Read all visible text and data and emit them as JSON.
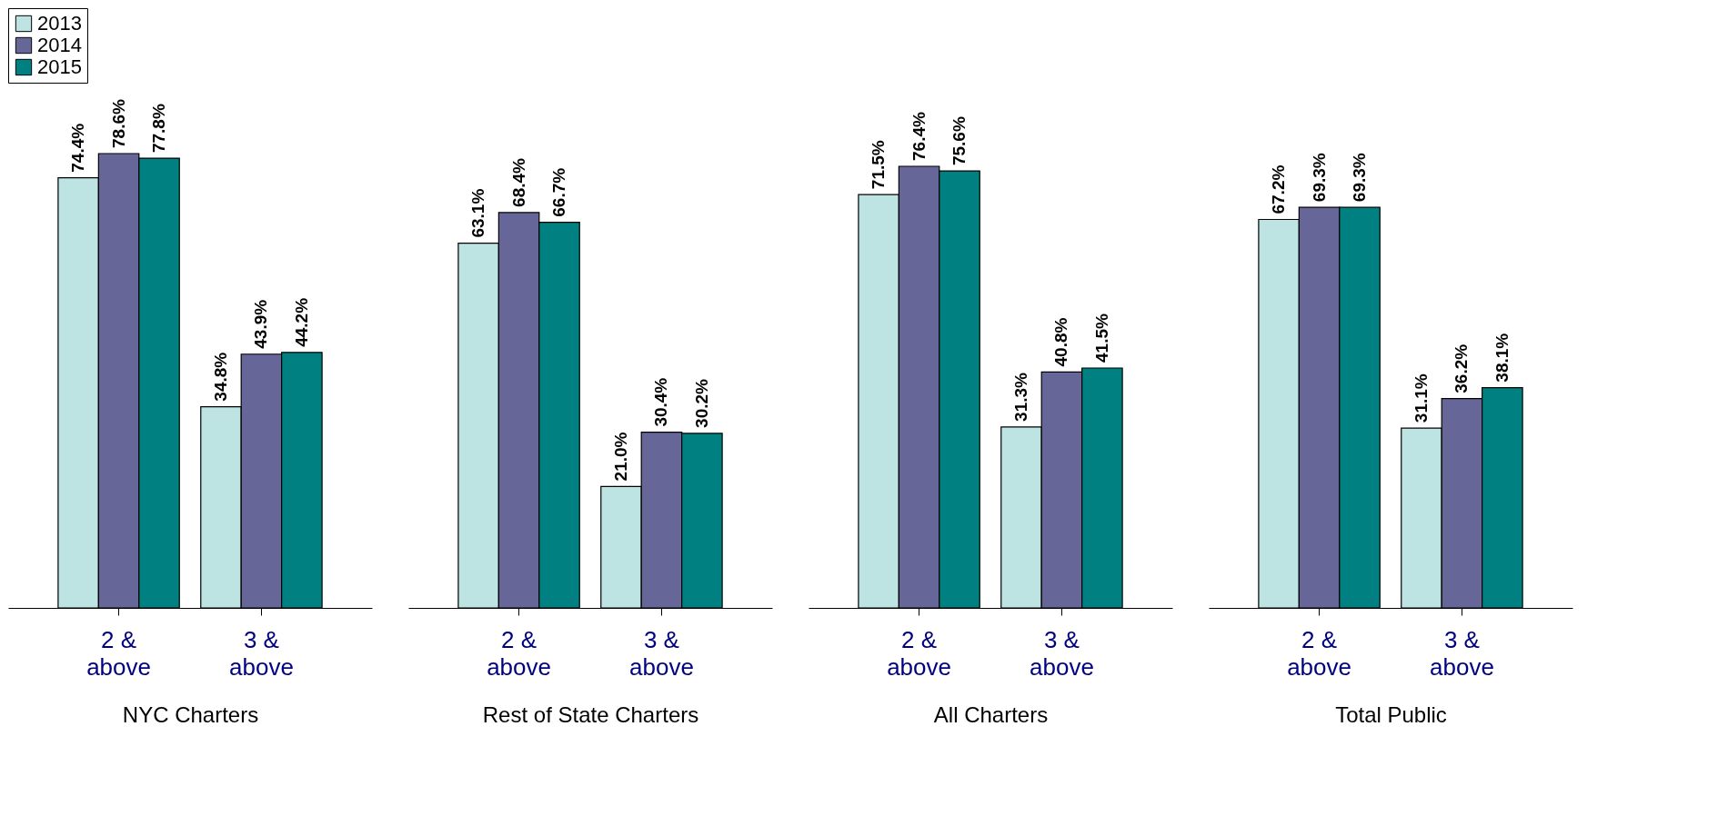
{
  "chart_data": [
    {
      "type": "bar",
      "xlabel": "NYC Charters",
      "categories": [
        "2 & above",
        "3 & above"
      ],
      "legend": "top",
      "series": [
        {
          "name": "2013",
          "color": "#bde3e3",
          "values": [
            74.4,
            34.8
          ],
          "value_labels": [
            "74.4%",
            "34.8%"
          ]
        },
        {
          "name": "2014",
          "color": "#666699",
          "values": [
            78.6,
            43.9
          ],
          "value_labels": [
            "78.6%",
            "43.9%"
          ]
        },
        {
          "name": "2015",
          "color": "#008080",
          "values": [
            77.8,
            44.2
          ],
          "value_labels": [
            "77.8%",
            "44.2%"
          ]
        }
      ]
    },
    {
      "type": "bar",
      "xlabel": "Rest of State Charters",
      "categories": [
        "2 & above",
        "3 & above"
      ],
      "series": [
        {
          "name": "2013",
          "color": "#bde3e3",
          "values": [
            63.1,
            21.0
          ],
          "value_labels": [
            "63.1%",
            "21.0%"
          ]
        },
        {
          "name": "2014",
          "color": "#666699",
          "values": [
            68.4,
            30.4
          ],
          "value_labels": [
            "68.4%",
            "30.4%"
          ]
        },
        {
          "name": "2015",
          "color": "#008080",
          "values": [
            66.7,
            30.2
          ],
          "value_labels": [
            "66.7%",
            "30.2%"
          ]
        }
      ]
    },
    {
      "type": "bar",
      "xlabel": "All Charters",
      "categories": [
        "2 & above",
        "3 & above"
      ],
      "series": [
        {
          "name": "2013",
          "color": "#bde3e3",
          "values": [
            71.5,
            31.3
          ],
          "value_labels": [
            "71.5%",
            "31.3%"
          ]
        },
        {
          "name": "2014",
          "color": "#666699",
          "values": [
            76.4,
            40.8
          ],
          "value_labels": [
            "76.4%",
            "40.8%"
          ]
        },
        {
          "name": "2015",
          "color": "#008080",
          "values": [
            75.6,
            41.5
          ],
          "value_labels": [
            "75.6%",
            "41.5%"
          ]
        }
      ]
    },
    {
      "type": "bar",
      "xlabel": "Total Public",
      "categories": [
        "2 & above",
        "3 & above"
      ],
      "series": [
        {
          "name": "2013",
          "color": "#bde3e3",
          "values": [
            67.2,
            31.1
          ],
          "value_labels": [
            "67.2%",
            "31.1%"
          ]
        },
        {
          "name": "2014",
          "color": "#666699",
          "values": [
            69.3,
            36.2
          ],
          "value_labels": [
            "69.3%",
            "36.2%"
          ]
        },
        {
          "name": "2015",
          "color": "#008080",
          "values": [
            69.3,
            38.1
          ],
          "value_labels": [
            "69.3%",
            "38.1%"
          ]
        }
      ]
    }
  ]
}
